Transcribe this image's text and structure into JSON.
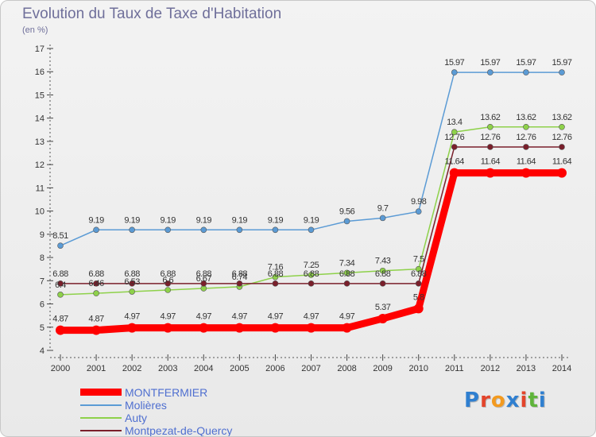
{
  "title": "Evolution du Taux de Taxe d'Habitation",
  "unit": "(en %)",
  "logo": {
    "letters": [
      {
        "ch": "P",
        "color": "#2f7fd0"
      },
      {
        "ch": "r",
        "color": "#e3442b"
      },
      {
        "ch": "o",
        "color": "#f39a1f"
      },
      {
        "ch": "x",
        "color": "#2f7fd0"
      },
      {
        "ch": "i",
        "color": "#e3442b"
      },
      {
        "ch": "t",
        "color": "#5fb43a"
      },
      {
        "ch": "i",
        "color": "#2f7fd0"
      }
    ]
  },
  "chart_data": {
    "type": "line",
    "title": "Evolution du Taux de Taxe d'Habitation",
    "ylabel": "(en %)",
    "xlabel": "",
    "x": [
      "2000",
      "2001",
      "2002",
      "2003",
      "2004",
      "2005",
      "2006",
      "2007",
      "2008",
      "2009",
      "2010",
      "2011",
      "2012",
      "2013",
      "2014"
    ],
    "ylim": [
      4,
      17
    ],
    "yticks": [
      4,
      5,
      6,
      7,
      8,
      9,
      10,
      11,
      12,
      13,
      14,
      15,
      16,
      17
    ],
    "grid": false,
    "legend_position": "bottom-left",
    "series": [
      {
        "name": "MONTFERMIER",
        "color": "#ff0000",
        "thick": true,
        "values": [
          4.87,
          4.87,
          4.97,
          4.97,
          4.97,
          4.97,
          4.97,
          4.97,
          4.97,
          5.37,
          5.8,
          11.64,
          11.64,
          11.64,
          11.64
        ],
        "labels": [
          "4.87",
          "4.87",
          "4.97",
          "4.97",
          "4.97",
          "4.97",
          "4.97",
          "4.97",
          "4.97",
          "5.37",
          "5.8",
          "11.64",
          "11.64",
          "11.64",
          "11.64"
        ]
      },
      {
        "name": "Molières",
        "color": "#5b9bd5",
        "thick": false,
        "values": [
          8.51,
          9.19,
          9.19,
          9.19,
          9.19,
          9.19,
          9.19,
          9.19,
          9.56,
          9.7,
          9.98,
          15.97,
          15.97,
          15.97,
          15.97
        ],
        "labels": [
          "8.51",
          "9.19",
          "9.19",
          "9.19",
          "9.19",
          "9.19",
          "9.19",
          "9.19",
          "9.56",
          "9.7",
          "9.98",
          "15.97",
          "15.97",
          "15.97",
          "15.97"
        ]
      },
      {
        "name": "Auty",
        "color": "#8ed14a",
        "thick": false,
        "values": [
          6.4,
          6.46,
          6.53,
          6.6,
          6.67,
          6.74,
          7.16,
          7.25,
          7.34,
          7.43,
          7.5,
          13.4,
          13.62,
          13.62,
          13.62
        ],
        "labels": [
          "6.4",
          "6.46",
          "6.53",
          "6.6",
          "6.67",
          "6.74",
          "7.16",
          "7.25",
          "7.34",
          "7.43",
          "7.5",
          "13.4",
          "13.62",
          "13.62",
          "13.62"
        ]
      },
      {
        "name": "Montpezat-de-Quercy",
        "color": "#7a1f2b",
        "thick": false,
        "values": [
          6.88,
          6.88,
          6.88,
          6.88,
          6.88,
          6.88,
          6.88,
          6.88,
          6.88,
          6.88,
          6.88,
          12.76,
          12.76,
          12.76,
          12.76
        ],
        "labels": [
          "6.88",
          "6.88",
          "6.88",
          "6.88",
          "6.88",
          "6.88",
          "6.88",
          "6.88",
          "6.88",
          "6.88",
          "6.88",
          "12.76",
          "12.76",
          "12.76",
          "12.76"
        ]
      }
    ]
  }
}
